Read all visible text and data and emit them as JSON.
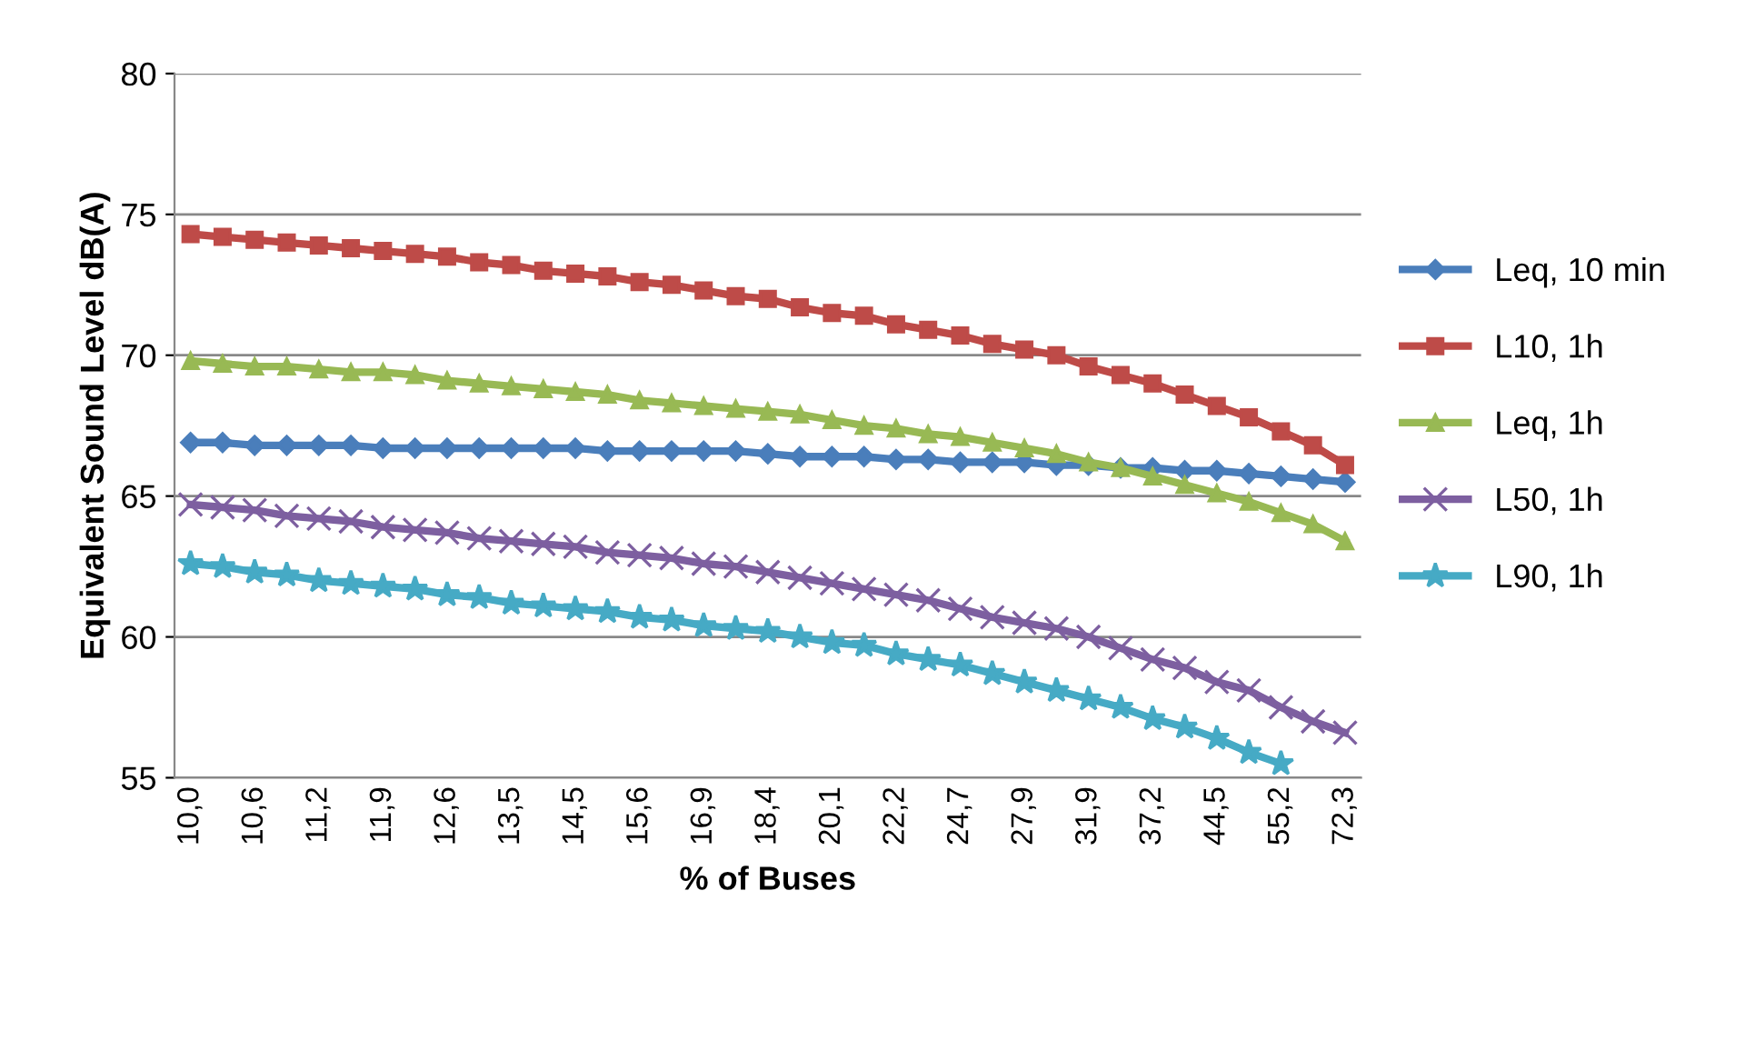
{
  "chart_data": {
    "type": "line",
    "xlabel": "% of Buses",
    "ylabel": "Equivalent Sound Level dB(A)",
    "categories": [
      "10,0",
      null,
      "10,6",
      null,
      "11,2",
      null,
      "11,9",
      null,
      "12,6",
      null,
      "13,5",
      null,
      "14,5",
      null,
      "15,6",
      null,
      "16,9",
      null,
      "18,4",
      null,
      "20,1",
      null,
      "22,2",
      null,
      "24,7",
      null,
      "27,9",
      null,
      "31,9",
      null,
      "37,2",
      null,
      "44,5",
      null,
      "55,2",
      null,
      "72,3"
    ],
    "series": [
      {
        "name": "Leq, 10 min",
        "color": "#4a7ebb",
        "marker": "diamond",
        "values": [
          66.9,
          66.9,
          66.8,
          66.8,
          66.8,
          66.8,
          66.7,
          66.7,
          66.7,
          66.7,
          66.7,
          66.7,
          66.7,
          66.6,
          66.6,
          66.6,
          66.6,
          66.6,
          66.5,
          66.4,
          66.4,
          66.4,
          66.3,
          66.3,
          66.2,
          66.2,
          66.2,
          66.1,
          66.1,
          66.0,
          66.0,
          65.9,
          65.9,
          65.8,
          65.7,
          65.6,
          65.5
        ]
      },
      {
        "name": "L10, 1h",
        "color": "#be4b48",
        "marker": "square",
        "values": [
          74.3,
          74.2,
          74.1,
          74.0,
          73.9,
          73.8,
          73.7,
          73.6,
          73.5,
          73.3,
          73.2,
          73.0,
          72.9,
          72.8,
          72.6,
          72.5,
          72.3,
          72.1,
          72.0,
          71.7,
          71.5,
          71.4,
          71.1,
          70.9,
          70.7,
          70.4,
          70.2,
          70.0,
          69.6,
          69.3,
          69.0,
          68.6,
          68.2,
          67.8,
          67.3,
          66.8,
          66.1
        ]
      },
      {
        "name": "Leq, 1h",
        "color": "#98b954",
        "marker": "triangle",
        "values": [
          69.8,
          69.7,
          69.6,
          69.6,
          69.5,
          69.4,
          69.4,
          69.3,
          69.1,
          69.0,
          68.9,
          68.8,
          68.7,
          68.6,
          68.4,
          68.3,
          68.2,
          68.1,
          68.0,
          67.9,
          67.7,
          67.5,
          67.4,
          67.2,
          67.1,
          66.9,
          66.7,
          66.5,
          66.2,
          66.0,
          65.7,
          65.4,
          65.1,
          64.8,
          64.4,
          64.0,
          63.4
        ]
      },
      {
        "name": "L50, 1h",
        "color": "#7d5fa0",
        "marker": "cross",
        "values": [
          64.7,
          64.6,
          64.5,
          64.3,
          64.2,
          64.1,
          63.9,
          63.8,
          63.7,
          63.5,
          63.4,
          63.3,
          63.2,
          63.0,
          62.9,
          62.8,
          62.6,
          62.5,
          62.3,
          62.1,
          61.9,
          61.7,
          61.5,
          61.3,
          61.0,
          60.7,
          60.5,
          60.3,
          60.0,
          59.6,
          59.2,
          58.9,
          58.4,
          58.1,
          57.5,
          57.0,
          56.6
        ]
      },
      {
        "name": "L90, 1h",
        "color": "#46aac5",
        "marker": "star",
        "values": [
          62.6,
          62.5,
          62.3,
          62.2,
          62.0,
          61.9,
          61.8,
          61.7,
          61.5,
          61.4,
          61.2,
          61.1,
          61.0,
          60.9,
          60.7,
          60.6,
          60.4,
          60.3,
          60.2,
          60.0,
          59.8,
          59.7,
          59.4,
          59.2,
          59.0,
          58.7,
          58.4,
          58.1,
          57.8,
          57.5,
          57.1,
          56.8,
          56.4,
          55.9,
          55.5,
          null,
          null
        ]
      }
    ],
    "ylim": [
      55,
      80
    ],
    "yticks": [
      55,
      60,
      65,
      70,
      75,
      80
    ],
    "grid": "y",
    "legend": "right"
  }
}
